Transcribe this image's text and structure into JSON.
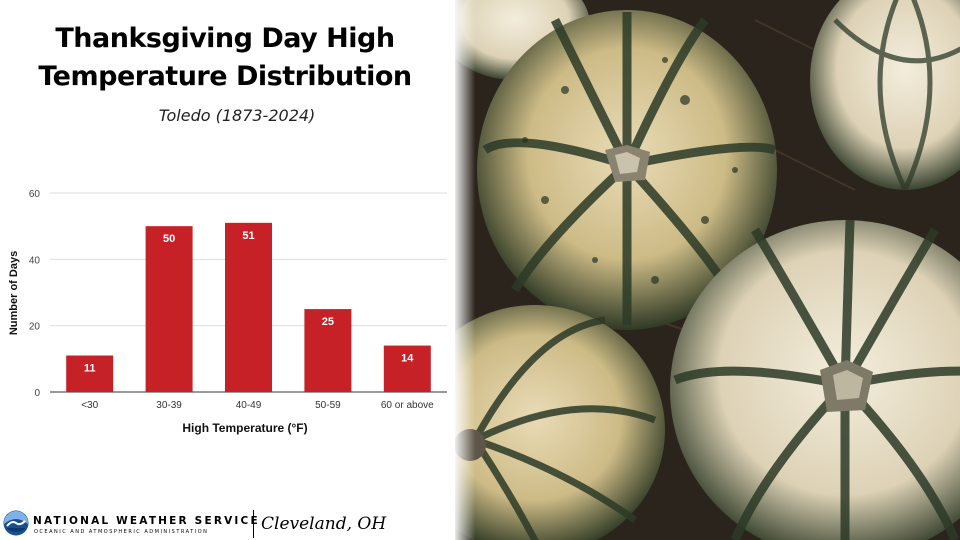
{
  "header": {
    "title_line1": "Thanksgiving Day High",
    "title_line2": "Temperature Distribution",
    "subtitle": "Toledo (1873-2024)"
  },
  "chart_data": {
    "type": "bar",
    "categories": [
      "<30",
      "30-39",
      "40-49",
      "50-59",
      "60 or above"
    ],
    "values": [
      11,
      50,
      51,
      25,
      14
    ],
    "data_labels": [
      "11",
      "50",
      "51",
      "25",
      "14"
    ],
    "xlabel": "High Temperature (°F)",
    "ylabel": "Number of Days",
    "ylim": [
      0,
      60
    ],
    "yticks": [
      0,
      20,
      40,
      60
    ],
    "grid": true,
    "bar_color": "#c62127",
    "label_color": "#ffffff"
  },
  "footer": {
    "org_name": "NATIONAL WEATHER SERVICE",
    "org_subtitle": "OCEANIC AND ATMOSPHERIC ADMINISTRATION",
    "office": "Cleveland, OH",
    "logo_icon": "noaa-logo-icon"
  },
  "photo": {
    "subject": "pumpkins-photo"
  }
}
